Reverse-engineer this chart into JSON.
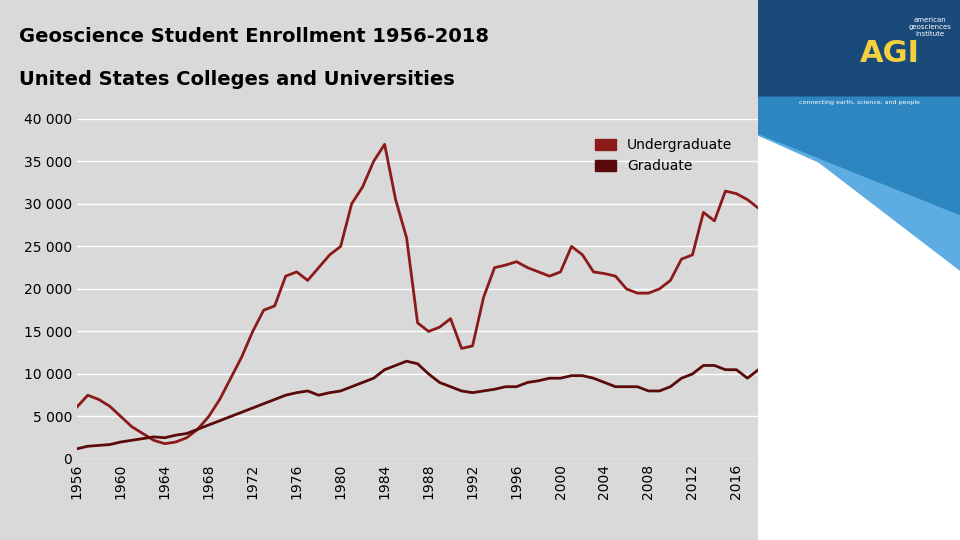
{
  "title_line1": "Geoscience Student Enrollment 1956-2018",
  "title_line2": "United States Colleges and Universities",
  "bg_color": "#d9d9d9",
  "plot_bg_color": "#d9d9d9",
  "undergrad_color": "#8b1a1a",
  "grad_color": "#5a0a0a",
  "undergrad_label": "Undergraduate",
  "grad_label": "Graduate",
  "ylim": [
    0,
    40000
  ],
  "yticks": [
    0,
    5000,
    10000,
    15000,
    20000,
    25000,
    30000,
    35000,
    40000
  ],
  "ytick_labels": [
    "0",
    "5 000",
    "10 000",
    "15 000",
    "20 000",
    "25 000",
    "30 000",
    "35 000",
    "40 000"
  ],
  "years": [
    1956,
    1957,
    1958,
    1959,
    1960,
    1961,
    1962,
    1963,
    1964,
    1965,
    1966,
    1967,
    1968,
    1969,
    1970,
    1971,
    1972,
    1973,
    1974,
    1975,
    1976,
    1977,
    1978,
    1979,
    1980,
    1981,
    1982,
    1983,
    1984,
    1985,
    1986,
    1987,
    1988,
    1989,
    1990,
    1991,
    1992,
    1993,
    1994,
    1995,
    1996,
    1997,
    1998,
    1999,
    2000,
    2001,
    2002,
    2003,
    2004,
    2005,
    2006,
    2007,
    2008,
    2009,
    2010,
    2011,
    2012,
    2013,
    2014,
    2015,
    2016,
    2017,
    2018
  ],
  "undergrad": [
    6100,
    7500,
    7000,
    6200,
    5000,
    3800,
    3000,
    2200,
    1800,
    2000,
    2500,
    3500,
    5000,
    7000,
    9500,
    12000,
    15000,
    17500,
    18000,
    21500,
    22000,
    21000,
    22500,
    24000,
    25000,
    30000,
    32000,
    35000,
    37000,
    30500,
    26000,
    16000,
    15000,
    15500,
    16500,
    13000,
    13300,
    19000,
    22500,
    22800,
    23200,
    22500,
    22000,
    21500,
    22000,
    25000,
    24000,
    22000,
    21800,
    21500,
    20000,
    19500,
    19500,
    20000,
    21000,
    23500,
    24000,
    29000,
    28000,
    31500,
    31200,
    30500,
    29500
  ],
  "grad": [
    1200,
    1500,
    1600,
    1700,
    2000,
    2200,
    2400,
    2600,
    2500,
    2800,
    3000,
    3500,
    4000,
    4500,
    5000,
    5500,
    6000,
    6500,
    7000,
    7500,
    7800,
    8000,
    7500,
    7800,
    8000,
    8500,
    9000,
    9500,
    10500,
    11000,
    11500,
    11200,
    10000,
    9000,
    8500,
    8000,
    7800,
    8000,
    8200,
    8500,
    8500,
    9000,
    9200,
    9500,
    9500,
    9800,
    9800,
    9500,
    9000,
    8500,
    8500,
    8500,
    8000,
    8000,
    8500,
    9500,
    10000,
    11000,
    11000,
    10500,
    10500,
    9500,
    10500
  ],
  "xtick_years": [
    1956,
    1960,
    1964,
    1968,
    1972,
    1976,
    1980,
    1984,
    1988,
    1992,
    1996,
    2000,
    2004,
    2008,
    2012,
    2016
  ],
  "line_width": 2.0,
  "title_fontsize": 14,
  "tick_fontsize": 10,
  "legend_fontsize": 10
}
